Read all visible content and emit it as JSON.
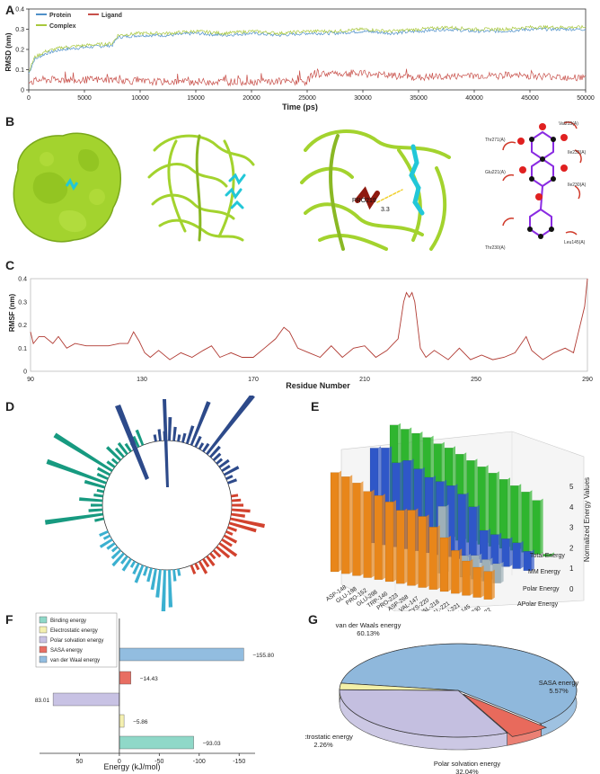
{
  "panels": {
    "a": "A",
    "b": "B",
    "c": "C",
    "d": "D",
    "e": "E",
    "f": "F",
    "g": "G"
  },
  "colors": {
    "protein": "#4f90c9",
    "ligand": "#c8504a",
    "complex": "#a8c83c",
    "rmsf": "#b03a32",
    "surface": "#a3d32e",
    "ligand_stick": "#22c7d8",
    "pro219": "#8f1a10",
    "bar_orange": "#e8861a",
    "bar_blue": "#2f57c8",
    "bar_grey": "#9eb0b8",
    "bar_green": "#2fb52f",
    "pie_vdw": "#8fb8dc",
    "pie_sasa": "#e86a5c",
    "pie_elec": "#f3f0a8",
    "pie_polar": "#c4bfe0",
    "f_binding": "#8fd8c8",
    "f_elec": "#f4f0b0",
    "f_polar": "#c8c2e4",
    "f_sasa": "#e86e62",
    "f_vdw": "#92bde0"
  },
  "panel_b": {
    "pro_label": "PRO219",
    "distance": "3.3",
    "residues": [
      "Val213(A)",
      "Thr271(A)",
      "Ile232(A)",
      "Glu221(A)",
      "Ile230(A)",
      "Thr230(A)",
      "Leu145(A)"
    ]
  },
  "chart_data": [
    {
      "panel": "A",
      "type": "line",
      "xlabel": "Time (ps)",
      "ylabel": "RMSD (nm)",
      "xlim": [
        0,
        50000
      ],
      "ylim": [
        0,
        0.4
      ],
      "xticks": [
        0,
        5000,
        10000,
        15000,
        20000,
        25000,
        30000,
        35000,
        40000,
        45000,
        50000
      ],
      "yticks": [
        0,
        0.1,
        0.2,
        0.3,
        0.4
      ],
      "legend": [
        "Protein",
        "Ligand",
        "Complex"
      ],
      "series": [
        {
          "name": "Protein",
          "x": [
            0,
            500,
            1500,
            3000,
            5000,
            7500,
            8000,
            10000,
            12500,
            15000,
            17500,
            20000,
            22500,
            25000,
            27500,
            30000,
            32500,
            35000,
            37500,
            40000,
            42500,
            45000,
            47500,
            50000
          ],
          "y": [
            0.08,
            0.15,
            0.18,
            0.2,
            0.21,
            0.22,
            0.26,
            0.27,
            0.27,
            0.28,
            0.27,
            0.28,
            0.27,
            0.28,
            0.28,
            0.29,
            0.28,
            0.29,
            0.3,
            0.29,
            0.29,
            0.3,
            0.3,
            0.3
          ]
        },
        {
          "name": "Complex",
          "x": [
            0,
            500,
            1500,
            3000,
            5000,
            7500,
            8000,
            10000,
            12500,
            15000,
            17500,
            20000,
            22500,
            25000,
            27500,
            30000,
            32500,
            35000,
            37500,
            40000,
            42500,
            45000,
            47500,
            50000
          ],
          "y": [
            0.09,
            0.16,
            0.19,
            0.21,
            0.22,
            0.23,
            0.27,
            0.28,
            0.28,
            0.29,
            0.28,
            0.29,
            0.28,
            0.29,
            0.29,
            0.3,
            0.29,
            0.3,
            0.31,
            0.3,
            0.3,
            0.31,
            0.31,
            0.31
          ]
        },
        {
          "name": "Ligand",
          "x": [
            0,
            300,
            1000,
            5000,
            8000,
            10000,
            15000,
            20000,
            25000,
            25500,
            30000,
            35000,
            40000,
            45000,
            50000
          ],
          "y": [
            0.05,
            0.04,
            0.05,
            0.05,
            0.05,
            0.04,
            0.04,
            0.04,
            0.04,
            0.08,
            0.08,
            0.06,
            0.07,
            0.07,
            0.06
          ]
        }
      ]
    },
    {
      "panel": "C",
      "type": "line",
      "xlabel": "Residue Number",
      "ylabel": "RMSF (nm)",
      "xlim": [
        90,
        290
      ],
      "ylim": [
        0,
        0.4
      ],
      "xticks": [
        90,
        130,
        170,
        210,
        250,
        290
      ],
      "yticks": [
        0,
        0.1,
        0.2,
        0.3,
        0.4
      ],
      "series": [
        {
          "name": "RMSF",
          "x": [
            90,
            91,
            93,
            95,
            98,
            100,
            103,
            106,
            110,
            114,
            118,
            122,
            125,
            127,
            128,
            129,
            131,
            133,
            136,
            140,
            144,
            148,
            152,
            155,
            158,
            162,
            166,
            170,
            174,
            178,
            181,
            183,
            186,
            190,
            194,
            198,
            202,
            206,
            210,
            214,
            218,
            222,
            224,
            225,
            226,
            227,
            228,
            229,
            230,
            232,
            235,
            240,
            244,
            248,
            252,
            256,
            260,
            264,
            268,
            270,
            274,
            278,
            282,
            285,
            287,
            289,
            290
          ],
          "y": [
            0.17,
            0.12,
            0.15,
            0.15,
            0.12,
            0.15,
            0.1,
            0.12,
            0.11,
            0.11,
            0.11,
            0.12,
            0.12,
            0.17,
            0.15,
            0.13,
            0.08,
            0.06,
            0.09,
            0.05,
            0.08,
            0.06,
            0.09,
            0.11,
            0.06,
            0.08,
            0.06,
            0.06,
            0.1,
            0.14,
            0.19,
            0.17,
            0.1,
            0.08,
            0.06,
            0.11,
            0.06,
            0.1,
            0.11,
            0.06,
            0.09,
            0.14,
            0.3,
            0.34,
            0.32,
            0.34,
            0.3,
            0.2,
            0.1,
            0.06,
            0.09,
            0.05,
            0.1,
            0.05,
            0.07,
            0.05,
            0.06,
            0.08,
            0.15,
            0.09,
            0.05,
            0.08,
            0.1,
            0.08,
            0.18,
            0.28,
            0.4
          ]
        }
      ]
    },
    {
      "panel": "D",
      "type": "bar",
      "layout": "circular",
      "groups": [
        {
          "name": "navy",
          "color": "#2d4a8a",
          "values": [
            0.3,
            0.5,
            0.4,
            1.0,
            0.6,
            0.3,
            0.4,
            0.8,
            2.0,
            0.5,
            0.3,
            0.4,
            3.2,
            0.6,
            0.4,
            0.3,
            0.5,
            0.4,
            0.7,
            0.3,
            0.4
          ]
        },
        {
          "name": "red",
          "color": "#d2422e",
          "values": [
            0.3,
            0.4,
            0.5,
            0.8,
            0.6,
            1.5,
            1.2,
            0.4,
            0.3,
            0.6,
            0.5,
            0.9,
            0.7,
            0.4,
            0.3,
            0.5,
            0.4,
            0.6,
            0.3,
            0.4
          ]
        },
        {
          "name": "cyan",
          "color": "#3bb0d0",
          "values": [
            0.3,
            0.5,
            1.6,
            1.8,
            1.2,
            0.9,
            0.6,
            0.4,
            0.8,
            0.5,
            0.3,
            0.6,
            0.4,
            0.7,
            0.5,
            0.3,
            0.4,
            0.6,
            0.3,
            0.4
          ]
        },
        {
          "name": "teal",
          "color": "#179a80",
          "values": [
            0.4,
            2.5,
            0.6,
            0.5,
            1.0,
            0.4,
            0.3,
            0.9,
            2.7,
            0.5,
            0.6,
            2.9,
            0.4,
            0.3,
            0.8,
            0.5,
            0.6,
            0.4,
            0.3,
            0.5,
            0.7
          ]
        }
      ]
    },
    {
      "panel": "E",
      "type": "bar",
      "layout": "3d",
      "zlabel": "Normalized Energy Values",
      "zlim": [
        0,
        5
      ],
      "zticks": [
        0,
        1,
        2,
        3,
        4,
        5
      ],
      "categories": [
        "ASP-148",
        "GLU-198",
        "PRO-152",
        "GLU-298",
        "TRP-146",
        "PRO-223",
        "ASP-268",
        "VAL-147",
        "CYS-220",
        "VAL-218",
        "VAL-221",
        "GLU-221",
        "LEU-145",
        "THR-230",
        "ILE-232"
      ],
      "series": [
        {
          "name": "APolar Energy",
          "color": "#e8861a",
          "values": [
            4.6,
            4.5,
            4.3,
            4.0,
            3.9,
            3.7,
            3.4,
            3.5,
            3.3,
            2.9,
            2.5,
            2.0,
            1.6,
            1.4,
            1.3
          ]
        },
        {
          "name": "Polar Energy",
          "color": "#9eb0b8",
          "values": [
            0,
            0,
            0,
            0,
            0,
            0,
            0,
            0,
            3.1,
            0,
            1.0,
            1.1,
            1.0,
            0.9,
            0
          ]
        },
        {
          "name": "MM Energy",
          "color": "#2f57c8",
          "values": [
            4.4,
            4.5,
            3.9,
            4.1,
            3.8,
            3.5,
            3.4,
            3.3,
            3.0,
            2.5,
            1.5,
            1.4,
            1.3,
            1.2,
            0.9
          ]
        },
        {
          "name": "Total Energy",
          "color": "#2fb52f",
          "values": [
            4.8,
            4.7,
            4.6,
            4.5,
            4.3,
            4.2,
            4.0,
            3.8,
            3.6,
            3.4,
            3.2,
            3.0,
            2.8,
            2.5,
            0.1
          ]
        }
      ]
    },
    {
      "panel": "F",
      "type": "bar",
      "orientation": "horizontal",
      "xlabel": "Energy (kJ/mol)",
      "xticks": [
        50,
        0,
        -50,
        -100,
        -150
      ],
      "xlim": [
        100,
        -170
      ],
      "categories": [
        "Binding energy",
        "Electrostatic energy",
        "Polar solvation energy",
        "SASA energy",
        "van der Waal energy"
      ],
      "values": [
        -93.03,
        -5.86,
        83.01,
        -14.43,
        -155.8
      ],
      "labels": [
        "−93.03",
        "−5.86",
        "83.01",
        "−14.43",
        "−155.80"
      ]
    },
    {
      "panel": "G",
      "type": "pie",
      "categories": [
        "van der Waals energy",
        "SASA energy",
        "Polar solvation energy",
        "Electrostatic energy"
      ],
      "values": [
        60.13,
        5.57,
        32.04,
        2.26
      ],
      "labels": [
        "60.13%",
        "5.57%",
        "32.04%",
        "2.26%"
      ]
    }
  ]
}
